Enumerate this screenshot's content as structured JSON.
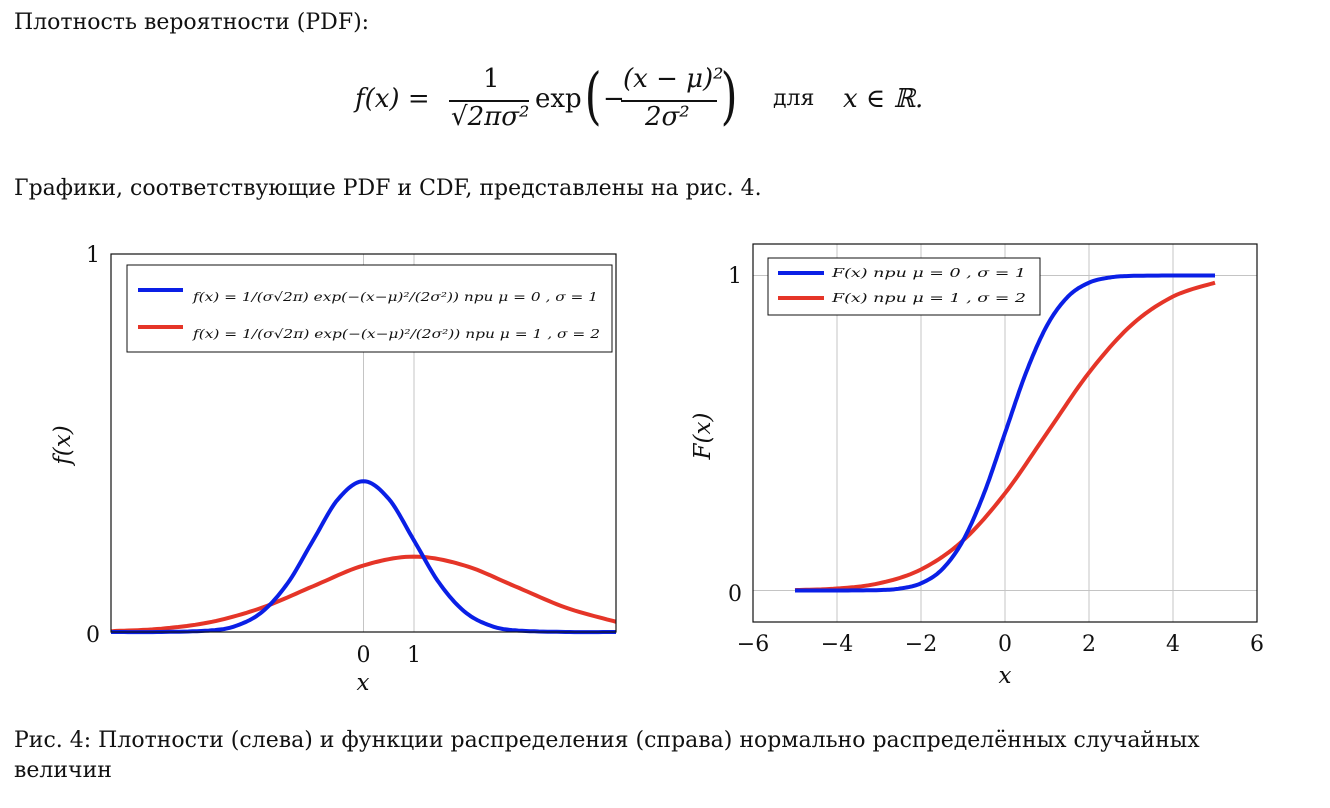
{
  "text": {
    "intro": "Плотность вероятности (PDF):",
    "refline": "Графики, соответствующие PDF и CDF, представлены на рис. 4.",
    "caption": "Рис. 4: Плотности (слева) и функции распределения (справа) нормально распределённых случайных величин"
  },
  "formula": {
    "lhs": "f(x) =",
    "num": "1",
    "den": "√2πσ²",
    "exp": "exp",
    "inner_num": "(x − μ)²",
    "inner_den": "2σ²",
    "minus": "−",
    "for_word": "для",
    "domain": "x ∈ ℝ."
  },
  "colors": {
    "blue": "#0a1fe6",
    "red": "#e53528",
    "grid": "#c4c4c4"
  },
  "chart_data": [
    {
      "type": "line",
      "xlim": [
        -5,
        5
      ],
      "ylim": [
        0,
        1
      ],
      "x_ticks": [
        "0",
        "1"
      ],
      "y_ticks": [
        "0",
        "1"
      ],
      "xlabel": "x",
      "ylabel": "f(x)",
      "legend": "top",
      "grid": "vertical lines at x = 0 and x = 1",
      "series": [
        {
          "name": "f(x) = 1/(σ√2π) exp(−(x−μ)²/(2σ²)) при μ = 0 , σ = 1",
          "color": "#0a1fe6",
          "x": [
            -5,
            -4,
            -3,
            -2.5,
            -2,
            -1.5,
            -1,
            -0.5,
            0,
            0.5,
            1,
            1.5,
            2,
            2.5,
            3,
            4,
            5
          ],
          "y": [
            0.0,
            0.0001,
            0.0044,
            0.0175,
            0.054,
            0.1295,
            0.242,
            0.3521,
            0.3989,
            0.3521,
            0.242,
            0.1295,
            0.054,
            0.0175,
            0.0044,
            0.0001,
            0.0
          ]
        },
        {
          "name": "f(x) = 1/(σ√2π) exp(−(x−μ)²/(2σ²)) при μ = 1 , σ = 2",
          "color": "#e53528",
          "x": [
            -5,
            -4,
            -3,
            -2,
            -1,
            0,
            1,
            2,
            3,
            4,
            5
          ],
          "y": [
            0.0022,
            0.0088,
            0.027,
            0.0648,
            0.121,
            0.176,
            0.1995,
            0.176,
            0.121,
            0.0648,
            0.027
          ]
        }
      ]
    },
    {
      "type": "line",
      "xlim": [
        -6,
        6
      ],
      "ylim": [
        -0.1,
        1.1
      ],
      "x_ticks": [
        "−6",
        "−4",
        "−2",
        "0",
        "2",
        "4",
        "6"
      ],
      "y_ticks": [
        "0",
        "1"
      ],
      "xlabel": "x",
      "ylabel": "F(x)",
      "legend": "top-left",
      "grid": "on",
      "series": [
        {
          "name": "F(x) при μ = 0 , σ = 1",
          "color": "#0a1fe6",
          "x": [
            -5,
            -4,
            -3,
            -2.5,
            -2,
            -1.5,
            -1,
            -0.5,
            0,
            0.5,
            1,
            1.5,
            2,
            2.5,
            3,
            4,
            5
          ],
          "y": [
            0.0,
            0.0,
            0.0013,
            0.0062,
            0.0228,
            0.0668,
            0.1587,
            0.3085,
            0.5,
            0.6915,
            0.8413,
            0.9332,
            0.9772,
            0.9938,
            0.9987,
            1.0,
            1.0
          ]
        },
        {
          "name": "F(x) при μ = 1 , σ = 2",
          "color": "#e53528",
          "x": [
            -5,
            -4,
            -3,
            -2,
            -1,
            0,
            1,
            2,
            3,
            4,
            5
          ],
          "y": [
            0.0013,
            0.0062,
            0.0228,
            0.0668,
            0.1587,
            0.3085,
            0.5,
            0.6915,
            0.8413,
            0.9332,
            0.9772
          ]
        }
      ]
    }
  ]
}
